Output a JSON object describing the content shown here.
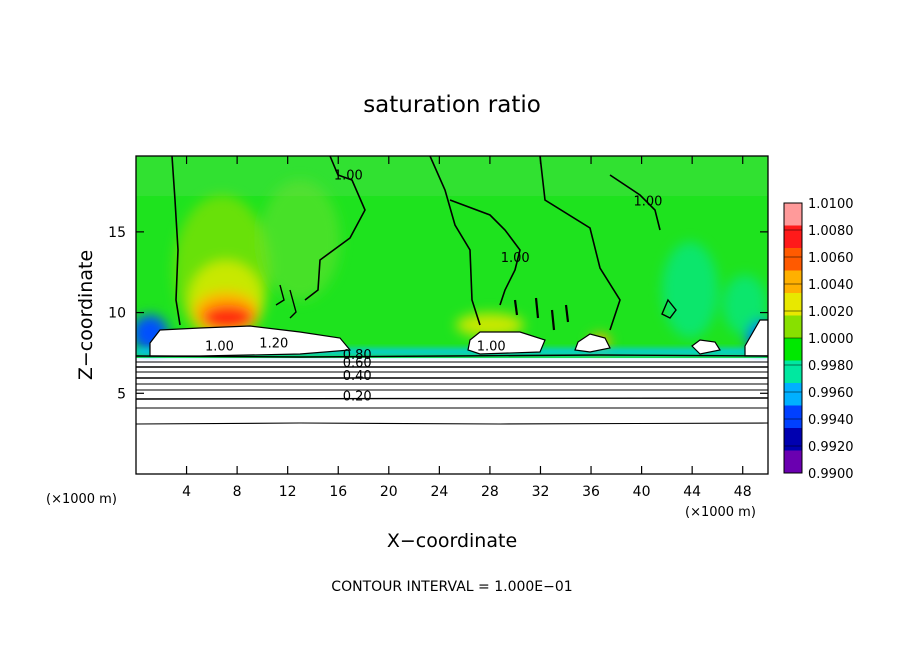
{
  "chart_data": {
    "type": "heatmap",
    "title": "saturation ratio",
    "xlabel": "X−coordinate",
    "ylabel": "Z−coordinate",
    "x_unit_left": "(×1000 m)",
    "x_unit_right": "(×1000 m)",
    "xlim": [
      0,
      50
    ],
    "ylim": [
      0,
      19.7
    ],
    "x_ticks": [
      4,
      8,
      12,
      16,
      20,
      24,
      28,
      32,
      36,
      40,
      44,
      48
    ],
    "x_tick_labels": [
      "4",
      "8",
      "12",
      "16",
      "20",
      "24",
      "28",
      "32",
      "36",
      "40",
      "44",
      "48"
    ],
    "y_ticks": [
      5,
      10,
      15
    ],
    "y_tick_labels": [
      "5",
      "10",
      "15"
    ],
    "colorbar": {
      "levels": [
        "1.0100",
        "1.0080",
        "1.0060",
        "1.0040",
        "1.0020",
        "1.0000",
        "0.9980",
        "0.9960",
        "0.9940",
        "0.9920",
        "0.9900"
      ],
      "colors": [
        "#ff9a9a",
        "#ff1a1a",
        "#ff5a00",
        "#ffb000",
        "#e8e800",
        "#88e000",
        "#00e800",
        "#00e8a0",
        "#00b0ff",
        "#0040ff",
        "#0000b0",
        "#6a00b0"
      ]
    },
    "contour_labels": [
      {
        "text": "1.00",
        "x": 16.8,
        "z": 18.3
      },
      {
        "text": "1.00",
        "x": 30.0,
        "z": 13.2
      },
      {
        "text": "1.00",
        "x": 40.5,
        "z": 16.7
      },
      {
        "text": "1.00",
        "x": 6.6,
        "z": 7.7
      },
      {
        "text": "1.20",
        "x": 10.9,
        "z": 7.9
      },
      {
        "text": "1.00",
        "x": 28.1,
        "z": 7.7
      },
      {
        "text": "0.80",
        "x": 17.5,
        "z": 7.2
      },
      {
        "text": "0.60",
        "x": 17.5,
        "z": 6.7
      },
      {
        "text": "0.40",
        "x": 17.5,
        "z": 5.9
      },
      {
        "text": "0.20",
        "x": 17.5,
        "z": 4.6
      }
    ],
    "contour_interval_text": "CONTOUR INTERVAL =  1.000E−01"
  }
}
